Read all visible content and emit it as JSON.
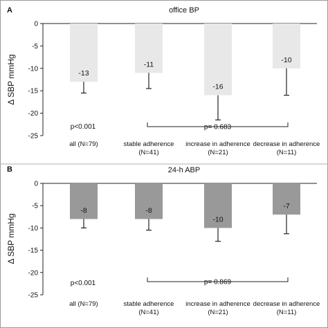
{
  "chart_data": [
    {
      "type": "bar",
      "panel": "A",
      "title": "office BP",
      "ylabel": "Δ SBP mmHg",
      "ylim": [
        -25,
        0
      ],
      "yticks": [
        0,
        -5,
        -10,
        -15,
        -20,
        -25
      ],
      "categories": [
        [
          "all (N=79)"
        ],
        [
          "stable adherence",
          "(N=41)"
        ],
        [
          "increase in adherence",
          "(N=21)"
        ],
        [
          "decrease in adherence",
          "(N=11)"
        ]
      ],
      "values": [
        -13,
        -11,
        -16,
        -10
      ],
      "errors": [
        2.5,
        3.5,
        5.5,
        6
      ],
      "value_labels": [
        "-13",
        "-11",
        "-16",
        "-10"
      ],
      "bar_color": "#e8e8e8",
      "p_overall": "p<0.001",
      "p_group": "p= 0.683"
    },
    {
      "type": "bar",
      "panel": "B",
      "title": "24-h ABP",
      "ylabel": "Δ SBP mmHg",
      "ylim": [
        -25,
        0
      ],
      "yticks": [
        0,
        -5,
        -10,
        -15,
        -20,
        -25
      ],
      "categories": [
        [
          "all (N=79)"
        ],
        [
          "stable adherence",
          "(N=41)"
        ],
        [
          "increase in adherence",
          "(N=21)"
        ],
        [
          "decrease in adherence",
          "(N=11)"
        ]
      ],
      "values": [
        -8,
        -8,
        -10,
        -7
      ],
      "errors": [
        2,
        2.5,
        3,
        4.3
      ],
      "value_labels": [
        "-8",
        "-8",
        "-10",
        "-7"
      ],
      "bar_color": "#999999",
      "p_overall": "p<0.001",
      "p_group": "p= 0.869"
    }
  ]
}
